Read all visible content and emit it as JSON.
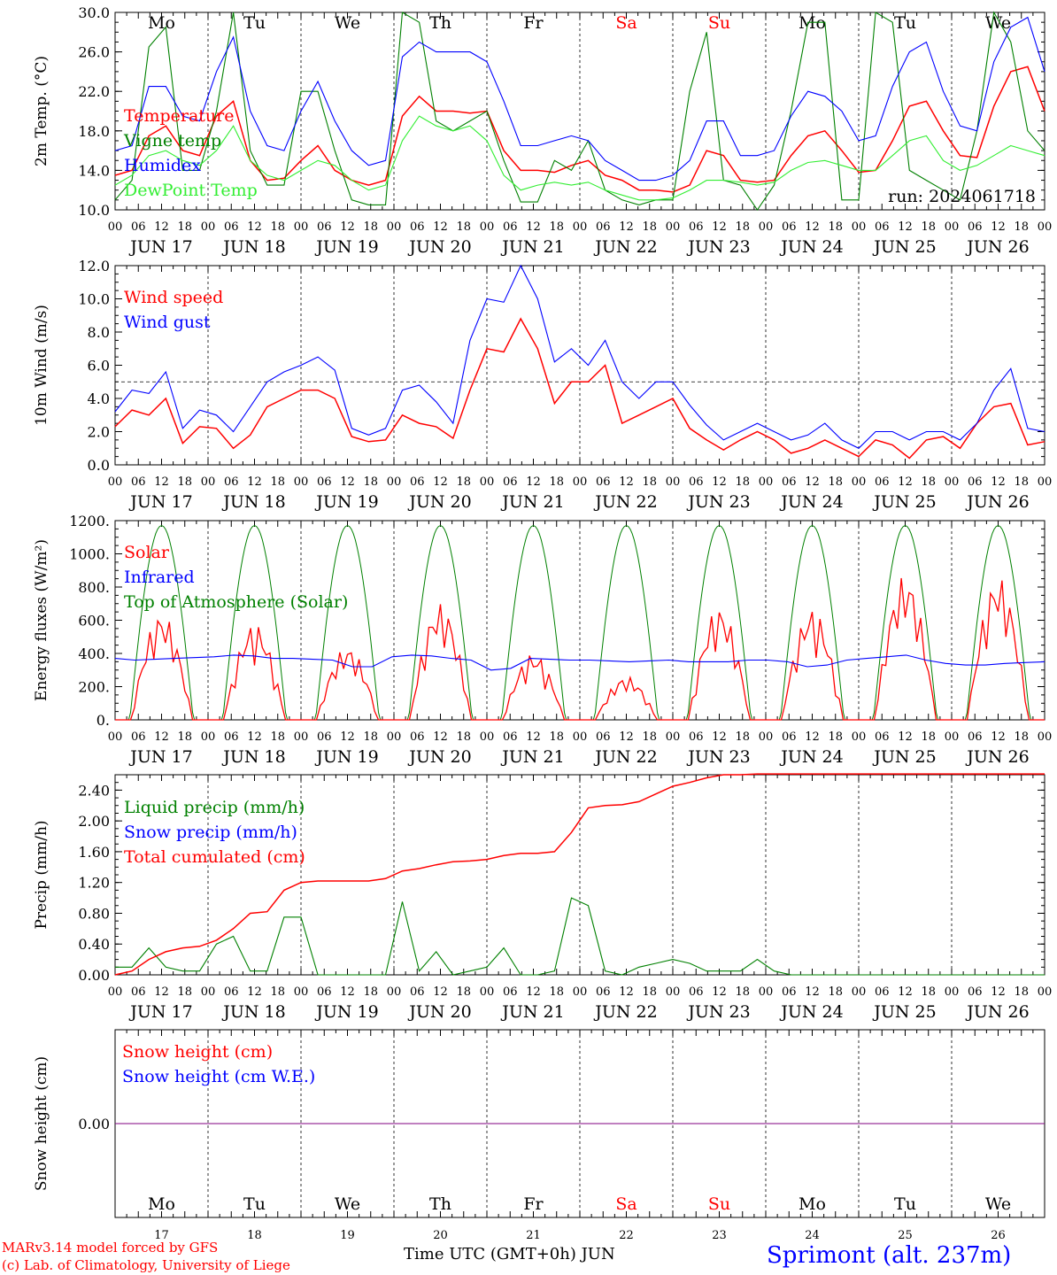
{
  "colors": {
    "red": "#ff0000",
    "green": "#008000",
    "blue": "#0000ff",
    "lightgreen": "#33ee33",
    "purple": "#800080",
    "grid": "#000000"
  },
  "x_axis": {
    "hour_ticks": [
      "00",
      "06",
      "12",
      "18"
    ],
    "day_labels": [
      "JUN 17",
      "JUN 18",
      "JUN 19",
      "JUN 20",
      "JUN 21",
      "JUN 22",
      "JUN 23",
      "JUN 24",
      "JUN 25",
      "JUN 26"
    ],
    "weekdays": [
      "Mo",
      "Tu",
      "We",
      "Th",
      "Fr",
      "Sa",
      "Su",
      "Mo",
      "Tu",
      "We"
    ],
    "weekend_flags": [
      false,
      false,
      false,
      false,
      false,
      true,
      true,
      false,
      false,
      false
    ],
    "day_numbers": [
      "17",
      "18",
      "19",
      "20",
      "21",
      "22",
      "23",
      "24",
      "25",
      "26"
    ]
  },
  "chart_data": [
    {
      "type": "line",
      "ylabel": "2m Temp. (°C)",
      "ylim": [
        10,
        30
      ],
      "yticks": [
        "10.0",
        "14.0",
        "18.0",
        "22.0",
        "26.0",
        "30.0"
      ],
      "yvals": [
        10,
        14,
        18,
        22,
        26,
        30
      ],
      "legend": [
        {
          "name": "Temperature",
          "color": "#ff0000"
        },
        {
          "name": "Vigne temp",
          "color": "#008000"
        },
        {
          "name": "Humidex",
          "color": "#0000ff"
        },
        {
          "name": "DewPoint Temp",
          "color": "#33ee33"
        }
      ],
      "annotation": "run: 2024061718",
      "hourly_step": 6,
      "series": [
        {
          "name": "Temperature",
          "color": "#ff0000",
          "values": [
            13.5,
            14,
            17.5,
            18.5,
            16,
            15.5,
            19.5,
            21,
            15,
            13,
            13.2,
            15,
            16.5,
            14,
            13,
            12.5,
            13,
            19.5,
            21.5,
            20,
            20,
            19.8,
            20,
            16,
            14,
            14,
            13.8,
            14.5,
            15,
            13.5,
            13,
            12,
            12,
            11.8,
            12.5,
            16,
            15.5,
            13,
            12.8,
            13,
            15.5,
            17.5,
            18,
            16,
            13.8,
            14,
            17,
            20.5,
            21,
            18,
            15.5,
            15.3,
            20.5,
            24,
            24.5,
            20
          ]
        },
        {
          "name": "Vigne temp",
          "color": "#008000",
          "values": [
            11,
            13,
            26.5,
            28.5,
            14,
            14,
            20,
            30,
            16,
            12.5,
            12.5,
            22,
            22,
            16,
            11,
            10.5,
            10.5,
            30,
            29,
            19,
            18,
            19,
            20,
            15,
            10.8,
            10.8,
            15,
            14,
            17,
            12,
            11,
            10.5,
            11,
            11,
            22,
            28,
            13,
            12.5,
            10,
            12.5,
            20,
            29,
            29,
            11,
            11,
            30,
            29,
            14,
            13,
            12,
            11,
            18,
            30,
            27,
            18,
            16
          ]
        },
        {
          "name": "Humidex",
          "color": "#0000ff",
          "values": [
            16,
            16.5,
            22.5,
            22.5,
            19.5,
            19,
            24,
            27.5,
            20,
            16.5,
            16,
            20,
            23,
            19,
            16,
            14.5,
            15,
            25.5,
            27,
            26,
            26,
            26,
            25,
            21,
            16.5,
            16.5,
            17,
            17.5,
            17,
            15,
            14,
            13,
            13,
            13.5,
            15,
            19,
            19,
            15.5,
            15.5,
            16,
            19.5,
            22,
            21.5,
            20,
            17,
            17.5,
            22.5,
            26,
            27,
            22,
            18.5,
            18,
            25,
            28.5,
            29.5,
            24
          ]
        },
        {
          "name": "DewPoint Temp",
          "color": "#33ee33",
          "values": [
            12.5,
            13.5,
            15.5,
            16,
            15,
            14.5,
            16,
            18.5,
            15,
            13.5,
            13,
            14,
            15,
            14.5,
            13,
            12,
            12.5,
            17,
            19.5,
            18.5,
            18,
            18.5,
            17,
            13.5,
            12,
            12.5,
            12.8,
            12.5,
            12.8,
            12,
            11.5,
            11,
            11,
            11.2,
            12,
            13,
            13,
            12.8,
            12.5,
            12.8,
            14,
            14.8,
            15,
            14.5,
            14,
            14,
            15.5,
            17,
            17.5,
            15,
            14,
            14.5,
            15.5,
            16.5,
            16,
            15.5
          ]
        }
      ]
    },
    {
      "type": "line",
      "ylabel": "10m Wind (m/s)",
      "ylim": [
        0,
        12
      ],
      "yticks": [
        "0.0",
        "2.0",
        "4.0",
        "6.0",
        "8.0",
        "10.0",
        "12.0"
      ],
      "yvals": [
        0,
        2,
        4,
        6,
        8,
        10,
        12
      ],
      "reference_line": 5,
      "legend": [
        {
          "name": "Wind speed",
          "color": "#ff0000"
        },
        {
          "name": "Wind gust",
          "color": "#0000ff"
        }
      ],
      "hourly_step": 6,
      "series": [
        {
          "name": "Wind speed",
          "color": "#ff0000",
          "values": [
            2.3,
            3.3,
            3,
            4,
            1.3,
            2.3,
            2.2,
            1,
            1.8,
            3.5,
            4,
            4.5,
            4.5,
            4,
            1.7,
            1.4,
            1.5,
            3,
            2.5,
            2.3,
            1.6,
            4.5,
            7,
            6.8,
            8.8,
            7,
            3.7,
            5,
            5,
            6,
            2.5,
            3,
            3.5,
            4,
            2.2,
            1.5,
            0.9,
            1.5,
            2,
            1.5,
            0.7,
            1,
            1.5,
            1,
            0.5,
            1.5,
            1.2,
            0.4,
            1.5,
            1.7,
            1,
            2.5,
            3.5,
            3.7,
            1.2,
            1.4
          ]
        },
        {
          "name": "Wind gust",
          "color": "#0000ff",
          "values": [
            3.2,
            4.5,
            4.3,
            5.6,
            2.2,
            3.3,
            3,
            2,
            3.5,
            5,
            5.6,
            6,
            6.5,
            5.7,
            2.2,
            1.8,
            2.2,
            4.5,
            4.8,
            3.8,
            2.5,
            7.5,
            10,
            9.8,
            12,
            10,
            6.2,
            7,
            6,
            7.5,
            5,
            4,
            5,
            5,
            3.6,
            2.4,
            1.5,
            2,
            2.5,
            2,
            1.5,
            1.8,
            2.5,
            1.5,
            1,
            2,
            2,
            1.5,
            2,
            2,
            1.5,
            2.5,
            4.5,
            5.8,
            2.2,
            2
          ]
        }
      ]
    },
    {
      "type": "line",
      "ylabel": "Energy fluxes (W/m²)",
      "ylim": [
        0,
        1200
      ],
      "yticks": [
        "0.",
        "200.",
        "400.",
        "600.",
        "800.",
        "1000.",
        "1200."
      ],
      "yvals": [
        0,
        200,
        400,
        600,
        800,
        1000,
        1200
      ],
      "legend": [
        {
          "name": "Solar",
          "color": "#ff0000"
        },
        {
          "name": "Infrared",
          "color": "#0000ff"
        },
        {
          "name": "Top of Atmosphere (Solar)",
          "color": "#008000"
        }
      ],
      "toa_peak": 1170,
      "daily_solar_peak": [
        640,
        580,
        440,
        700,
        400,
        260,
        680,
        670,
        870,
        860
      ],
      "hourly_step": 6,
      "series": [
        {
          "name": "Infrared",
          "color": "#0000ff",
          "values": [
            370,
            360,
            365,
            370,
            375,
            380,
            390,
            385,
            370,
            370,
            365,
            360,
            320,
            320,
            380,
            390,
            385,
            370,
            360,
            300,
            310,
            370,
            365,
            360,
            360,
            355,
            350,
            355,
            360,
            350,
            350,
            350,
            360,
            360,
            350,
            320,
            330,
            360,
            370,
            380,
            390,
            360,
            340,
            330,
            330,
            340,
            345,
            350
          ]
        }
      ]
    },
    {
      "type": "line",
      "ylabel": "Precip (mm/h)",
      "ylim": [
        0,
        2.6
      ],
      "yticks": [
        "0.00",
        "0.40",
        "0.80",
        "1.20",
        "1.60",
        "2.00",
        "2.40"
      ],
      "yvals": [
        0,
        0.4,
        0.8,
        1.2,
        1.6,
        2.0,
        2.4
      ],
      "legend": [
        {
          "name": "Liquid precip (mm/h)",
          "color": "#008000"
        },
        {
          "name": "Snow precip (mm/h)",
          "color": "#0000ff"
        },
        {
          "name": "Total cumulated (cm)",
          "color": "#ff0000"
        }
      ],
      "hourly_step": 6,
      "series": [
        {
          "name": "Liquid precip (mm/h)",
          "color": "#008000",
          "values": [
            0.1,
            0.1,
            0.35,
            0.1,
            0.05,
            0.05,
            0.4,
            0.5,
            0.05,
            0.05,
            0.75,
            0.75,
            0,
            0,
            0,
            0,
            0,
            0.95,
            0.05,
            0.3,
            0,
            0.05,
            0.1,
            0.35,
            0,
            0,
            0.05,
            1,
            0.9,
            0.05,
            0,
            0.1,
            0.15,
            0.2,
            0.15,
            0.05,
            0.05,
            0.05,
            0.2,
            0.05,
            0,
            0,
            0,
            0,
            0,
            0,
            0,
            0,
            0,
            0,
            0,
            0,
            0,
            0,
            0,
            0
          ]
        },
        {
          "name": "Total cumulated (cm)",
          "color": "#ff0000",
          "values": [
            0,
            0.05,
            0.2,
            0.3,
            0.35,
            0.37,
            0.45,
            0.6,
            0.8,
            0.82,
            1.1,
            1.2,
            1.22,
            1.22,
            1.22,
            1.22,
            1.25,
            1.35,
            1.38,
            1.43,
            1.47,
            1.48,
            1.5,
            1.55,
            1.58,
            1.58,
            1.6,
            1.85,
            2.17,
            2.2,
            2.21,
            2.25,
            2.35,
            2.45,
            2.5,
            2.56,
            2.6,
            2.6,
            2.61,
            2.61,
            2.61,
            2.61,
            2.61,
            2.61,
            2.61,
            2.61,
            2.61,
            2.61,
            2.61,
            2.61,
            2.61,
            2.61,
            2.61,
            2.61,
            2.61,
            2.61
          ]
        }
      ]
    },
    {
      "type": "line",
      "ylabel": "Snow height (cm)",
      "ylim": [
        -1,
        1
      ],
      "yticks": [
        "0.00"
      ],
      "yvals": [
        0
      ],
      "legend": [
        {
          "name": "Snow height (cm)",
          "color": "#ff0000"
        },
        {
          "name": "Snow height (cm W.E.)",
          "color": "#0000ff"
        }
      ],
      "series": [
        {
          "name": "Snow height (cm)",
          "color": "#800080",
          "values": [
            0,
            0
          ]
        }
      ]
    }
  ],
  "footer": {
    "model_line": "MARv3.14 model forced by GFS",
    "lab_line": "(c) Lab. of Climatology, University of Liege",
    "xlabel": "Time UTC (GMT+0h) JUN",
    "station": "Sprimont (alt. 237m)"
  }
}
